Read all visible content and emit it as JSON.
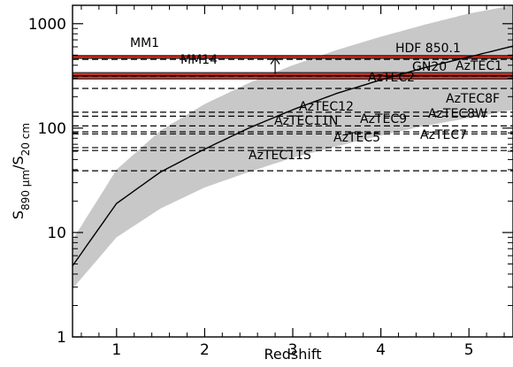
{
  "chart_data": {
    "type": "line",
    "xlabel": "Redshift",
    "ylabel_parts": {
      "main": "S",
      "sub1": "890 μm",
      "slash": "/S",
      "sub2": "20 cm"
    },
    "xlim": [
      0.5,
      5.5
    ],
    "ylim": [
      1,
      1500
    ],
    "ylog": true,
    "x_ticks": [
      1,
      2,
      3,
      4,
      5
    ],
    "x_tick_labels": [
      "1",
      "2",
      "3",
      "4",
      "5"
    ],
    "y_ticks": [
      1,
      10,
      100,
      1000
    ],
    "y_tick_labels": [
      "1",
      "10",
      "100",
      "1000"
    ],
    "grid": false,
    "model_curve": {
      "x": [
        0.5,
        1.0,
        1.5,
        2.0,
        2.5,
        3.0,
        3.5,
        4.0,
        4.5,
        5.0,
        5.5
      ],
      "y": [
        4.8,
        19,
        38,
        63,
        100,
        150,
        215,
        290,
        380,
        480,
        610
      ]
    },
    "band_upper": {
      "x": [
        0.5,
        1.0,
        1.5,
        2.0,
        2.5,
        3.0,
        3.5,
        4.0,
        4.5,
        5.0,
        5.5
      ],
      "y": [
        8.5,
        40,
        95,
        170,
        270,
        400,
        560,
        750,
        980,
        1250,
        1500
      ]
    },
    "band_lower": {
      "x": [
        0.5,
        1.0,
        1.5,
        2.0,
        2.5,
        3.0,
        3.5,
        4.0,
        4.5,
        5.0,
        5.5
      ],
      "y": [
        2.9,
        9,
        17,
        27,
        38,
        52,
        67,
        85,
        105,
        125,
        150
      ]
    },
    "red_lines": [
      {
        "label": "MM1",
        "y": 480
      },
      {
        "label": "MM14",
        "y": 330
      },
      {
        "label": "",
        "y": 305
      }
    ],
    "arrow": {
      "x": 2.8,
      "from": 330,
      "to": 470
    },
    "dashed_lines": [
      {
        "label": "HDF 850.1",
        "y": 455
      },
      {
        "label": "GN20",
        "y": 330
      },
      {
        "label": "AzTEC1",
        "y": 312
      },
      {
        "label": "AzTEC2",
        "y": 240
      },
      {
        "label": "AzTEC8F",
        "y": 142
      },
      {
        "label": "AzTEC12",
        "y": 130
      },
      {
        "label": "AzTEC8W",
        "y": 105
      },
      {
        "label": "AzTEC9",
        "y": 92
      },
      {
        "label": "AzTEC11N",
        "y": 88
      },
      {
        "label": "AzTEC7",
        "y": 65
      },
      {
        "label": "AzTEC5",
        "y": 61
      },
      {
        "label": "AzTEC11S",
        "y": 39
      }
    ]
  }
}
